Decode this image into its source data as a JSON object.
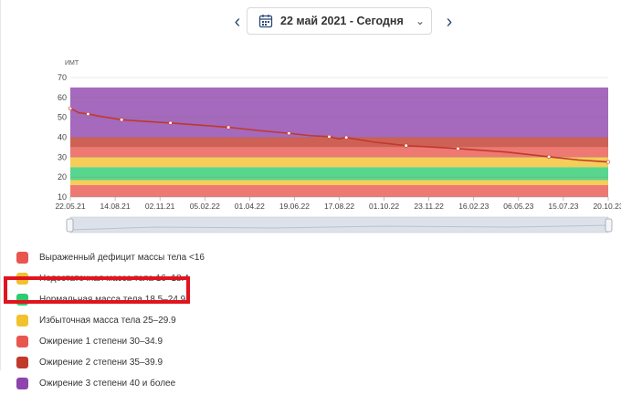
{
  "date_nav": {
    "prev_icon": "chevron-left-icon",
    "next_icon": "chevron-right-icon",
    "calendar_icon": "calendar-icon",
    "selected_label": "22 май 2021 - Сегодня",
    "prev_glyph": "‹",
    "next_glyph": "›",
    "chevron_glyph": "⌄"
  },
  "colors": {
    "deficit_severe": "#e8574f",
    "deficit": "#f2c12e",
    "normal": "#2ecc71",
    "overweight": "#f2c12e",
    "obesity1": "#e8574f",
    "obesity2": "#c0392b",
    "obesity3": "#8e44ad",
    "series": "#c0392b",
    "highlight": "#e1141d"
  },
  "chart_data": {
    "type": "line",
    "ylabel": "ИМТ",
    "ylim": [
      10,
      70
    ],
    "yticks": [
      10,
      20,
      30,
      40,
      50,
      60,
      70
    ],
    "xlim": [
      "2021-05-22",
      "2023-10-20"
    ],
    "xticks": [
      "22.05.21",
      "14.08.21",
      "02.11.21",
      "05.02.22",
      "01.04.22",
      "19.06.22",
      "17.08.22",
      "01.10.22",
      "23.11.22",
      "16.02.23",
      "06.05.23",
      "15.07.23",
      "20.10.23"
    ],
    "bands": [
      {
        "from": 10,
        "to": 16,
        "color": "#e8574f"
      },
      {
        "from": 16,
        "to": 18.5,
        "color": "#f2c12e"
      },
      {
        "from": 18.5,
        "to": 25,
        "color": "#2ecc71"
      },
      {
        "from": 25,
        "to": 30,
        "color": "#f2c12e"
      },
      {
        "from": 30,
        "to": 35,
        "color": "#e8574f"
      },
      {
        "from": 35,
        "to": 40,
        "color": "#c0392b"
      },
      {
        "from": 40,
        "to": 65,
        "color": "#8e44ad"
      }
    ],
    "series": [
      {
        "values": [
          {
            "x": "2021-05-22",
            "y": 54.5
          },
          {
            "x": "2021-06-05",
            "y": 52.3
          },
          {
            "x": "2021-06-20",
            "y": 51.7
          },
          {
            "x": "2021-07-10",
            "y": 50.5
          },
          {
            "x": "2021-08-14",
            "y": 48.8
          },
          {
            "x": "2021-09-20",
            "y": 48.0
          },
          {
            "x": "2021-11-02",
            "y": 47.2
          },
          {
            "x": "2021-12-20",
            "y": 46.1
          },
          {
            "x": "2022-02-05",
            "y": 45.0
          },
          {
            "x": "2022-04-01",
            "y": 43.2
          },
          {
            "x": "2022-05-15",
            "y": 42.0
          },
          {
            "x": "2022-06-19",
            "y": 40.8
          },
          {
            "x": "2022-07-20",
            "y": 40.3
          },
          {
            "x": "2022-08-05",
            "y": 39.2
          },
          {
            "x": "2022-08-17",
            "y": 39.9
          },
          {
            "x": "2022-10-01",
            "y": 37.6
          },
          {
            "x": "2022-11-23",
            "y": 35.8
          },
          {
            "x": "2023-01-10",
            "y": 35.0
          },
          {
            "x": "2023-02-16",
            "y": 34.3
          },
          {
            "x": "2023-05-06",
            "y": 32.6
          },
          {
            "x": "2023-07-15",
            "y": 30.2
          },
          {
            "x": "2023-09-01",
            "y": 28.6
          },
          {
            "x": "2023-10-20",
            "y": 27.6
          }
        ]
      }
    ]
  },
  "legend": [
    {
      "label": "Выраженный дефицит массы тела <16",
      "color": "#e8574f"
    },
    {
      "label": "Недостаточная масса тела 16–18.4",
      "color": "#f2c12e"
    },
    {
      "label": "Нормальная масса тела 18.5–24.9",
      "color": "#2ecc71"
    },
    {
      "label": "Избыточная масса тела 25–29.9",
      "color": "#f2c12e"
    },
    {
      "label": "Ожирение 1 степени 30–34.9",
      "color": "#e8574f"
    },
    {
      "label": "Ожирение 2 степени 35–39.9",
      "color": "#c0392b"
    },
    {
      "label": "Ожирение 3 степени 40 и более",
      "color": "#8e44ad"
    }
  ]
}
